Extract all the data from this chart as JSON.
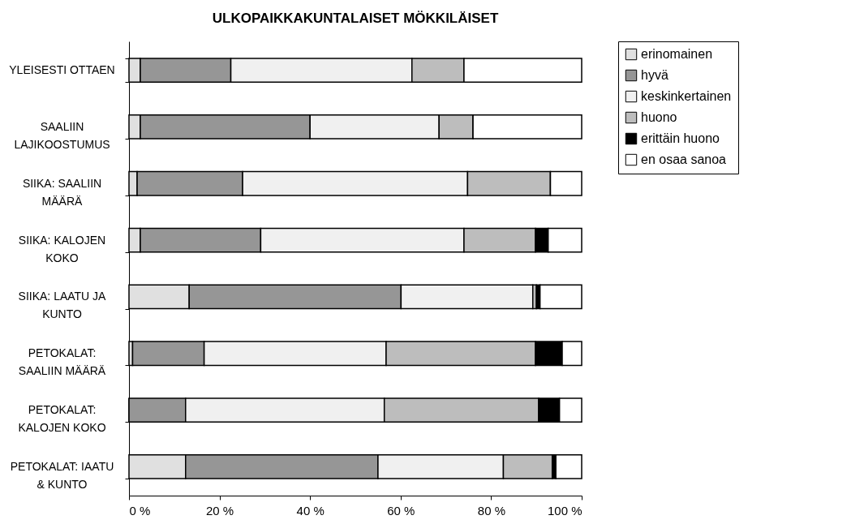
{
  "chart_data": {
    "type": "bar",
    "orientation": "horizontal",
    "stacked": true,
    "title": "ULKOPAIKKAKUNTALAISET MÖKKILÄISET",
    "categories": [
      "YLEISESTI OTTAEN",
      "SAALIIN\nLAJIKOOSTUMUS",
      "SIIKA: SAALIIN\nMÄÄRÄ",
      "SIIKA: KALOJEN\nKOKO",
      "SIIKA: LAATU JA\nKUNTO",
      "PETOKALAT:\nSAALIIN MÄÄRÄ",
      "PETOKALAT:\nKALOJEN KOKO",
      "PETOKALAT: IAATU\n& KUNTO"
    ],
    "series": [
      {
        "name": "erinomainen",
        "color": "#e0e0e0",
        "values": [
          2.5,
          2.5,
          1.8,
          2.5,
          13.3,
          0.8,
          0,
          12.5
        ]
      },
      {
        "name": "hyvä",
        "color": "#969696",
        "values": [
          20,
          37.5,
          23.3,
          26.6,
          46.8,
          15.8,
          12.5,
          42.5
        ]
      },
      {
        "name": "keskinkertainen",
        "color": "#f0f0f0",
        "values": [
          40,
          28.5,
          49.7,
          44.9,
          29.1,
          40.2,
          43.9,
          27.7
        ]
      },
      {
        "name": "huono",
        "color": "#bdbdbd",
        "values": [
          11.5,
          7.5,
          18.3,
          15.8,
          0.8,
          33,
          34.1,
          10.8
        ]
      },
      {
        "name": "erittäin huono",
        "color": "#000000",
        "values": [
          0,
          0,
          0,
          2.8,
          0.8,
          5.9,
          4.6,
          0.8
        ]
      },
      {
        "name": "en osaa sanoa",
        "color": "#ffffff",
        "values": [
          26,
          24,
          6.9,
          7.4,
          9.2,
          4.3,
          4.9,
          5.7
        ]
      }
    ],
    "xlim": [
      0,
      100
    ],
    "xticks": [
      {
        "value": 0,
        "label": "0 %"
      },
      {
        "value": 20,
        "label": "20 %"
      },
      {
        "value": 40,
        "label": "40 %"
      },
      {
        "value": 60,
        "label": "60 %"
      },
      {
        "value": 80,
        "label": "80 %"
      },
      {
        "value": 100,
        "label": "100 %"
      }
    ],
    "grid": false,
    "legend": "right"
  }
}
